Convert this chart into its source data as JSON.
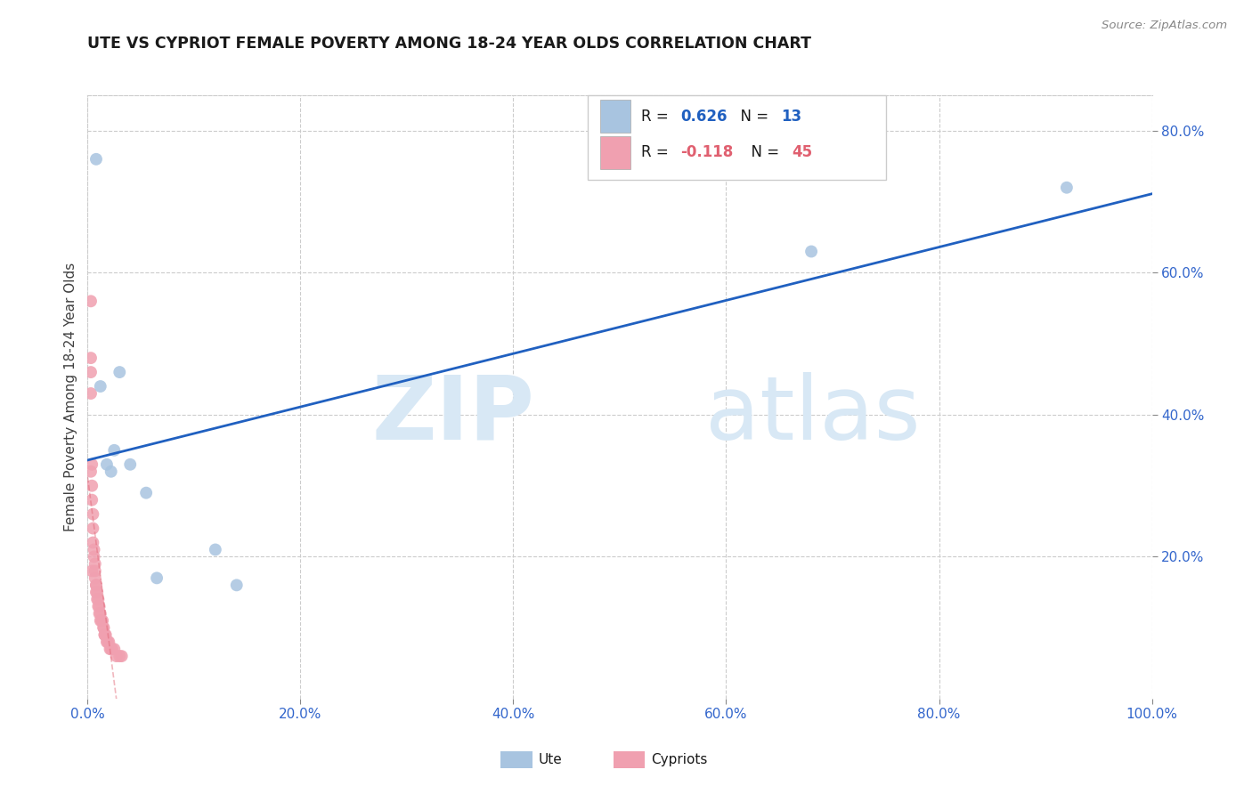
{
  "title": "UTE VS CYPRIOT FEMALE POVERTY AMONG 18-24 YEAR OLDS CORRELATION CHART",
  "source": "Source: ZipAtlas.com",
  "ylabel": "Female Poverty Among 18-24 Year Olds",
  "ute_x": [
    0.008,
    0.012,
    0.018,
    0.022,
    0.025,
    0.03,
    0.04,
    0.055,
    0.065,
    0.12,
    0.14,
    0.68,
    0.92
  ],
  "ute_y": [
    0.76,
    0.44,
    0.33,
    0.32,
    0.35,
    0.46,
    0.33,
    0.29,
    0.17,
    0.21,
    0.16,
    0.63,
    0.72
  ],
  "cypriot_x": [
    0.003,
    0.003,
    0.003,
    0.004,
    0.004,
    0.004,
    0.005,
    0.005,
    0.005,
    0.006,
    0.006,
    0.007,
    0.007,
    0.007,
    0.008,
    0.008,
    0.008,
    0.009,
    0.009,
    0.01,
    0.01,
    0.011,
    0.011,
    0.012,
    0.012,
    0.013,
    0.014,
    0.015,
    0.015,
    0.016,
    0.016,
    0.017,
    0.018,
    0.019,
    0.02,
    0.021,
    0.022,
    0.023,
    0.025,
    0.027,
    0.03,
    0.032,
    0.003,
    0.004,
    0.003
  ],
  "cypriot_y": [
    0.56,
    0.48,
    0.46,
    0.33,
    0.3,
    0.28,
    0.26,
    0.24,
    0.22,
    0.21,
    0.2,
    0.19,
    0.18,
    0.17,
    0.16,
    0.16,
    0.15,
    0.15,
    0.14,
    0.14,
    0.13,
    0.13,
    0.12,
    0.12,
    0.11,
    0.11,
    0.11,
    0.1,
    0.1,
    0.09,
    0.09,
    0.09,
    0.08,
    0.08,
    0.08,
    0.07,
    0.07,
    0.07,
    0.07,
    0.06,
    0.06,
    0.06,
    0.32,
    0.18,
    0.43
  ],
  "ute_color": "#a8c4e0",
  "cypriot_color": "#f0a0b0",
  "ute_line_color": "#2060c0",
  "cypriot_line_color": "#e06070",
  "R_ute": "0.626",
  "N_ute": "13",
  "R_cypriot": "-0.118",
  "N_cypriot": "45",
  "xlim": [
    0.0,
    1.0
  ],
  "ylim": [
    0.0,
    0.85
  ],
  "xticks": [
    0.0,
    0.2,
    0.4,
    0.6,
    0.8,
    1.0
  ],
  "xtick_labels": [
    "0.0%",
    "20.0%",
    "40.0%",
    "60.0%",
    "80.0%",
    "100.0%"
  ],
  "yticks_right": [
    0.2,
    0.4,
    0.6,
    0.8
  ],
  "ytick_labels_right": [
    "20.0%",
    "40.0%",
    "60.0%",
    "80.0%"
  ],
  "watermark_zip": "ZIP",
  "watermark_atlas": "atlas",
  "watermark_color": "#d8e8f5",
  "background_color": "#ffffff",
  "grid_color": "#cccccc",
  "title_color": "#1a1a1a",
  "axis_label_color": "#404040",
  "tick_color": "#3366cc",
  "legend_text_color": "#1a1a1a"
}
